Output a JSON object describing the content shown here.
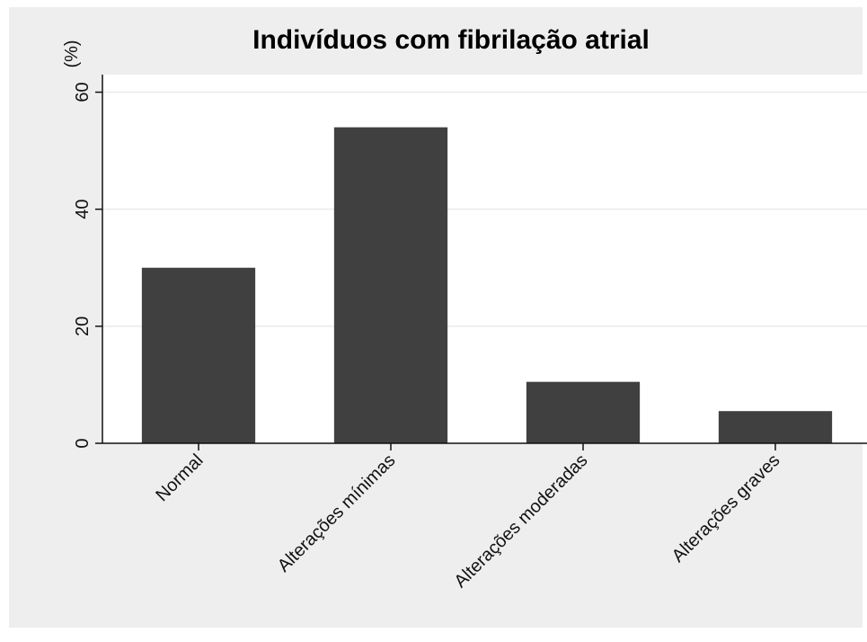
{
  "chart_data": {
    "type": "bar",
    "title": "Indivíduos com fibrilação atrial",
    "ylabel": "(%)",
    "xlabel": "",
    "categories": [
      "Normal",
      "Alterações mínimas",
      "Alterações moderadas",
      "Alterações graves"
    ],
    "values": [
      30,
      54,
      10.5,
      5.5
    ],
    "ylim": [
      0,
      63
    ],
    "yticks": [
      0,
      20,
      40,
      60
    ],
    "ytick_labels": [
      "0",
      "20",
      "40",
      "60"
    ],
    "grid": true,
    "legend": "none",
    "colors": {
      "bar": "#404040",
      "plot_background": "#ffffff",
      "outer_background": "#eeeeee",
      "grid": "#eaeaea",
      "axis": "#111111"
    }
  }
}
